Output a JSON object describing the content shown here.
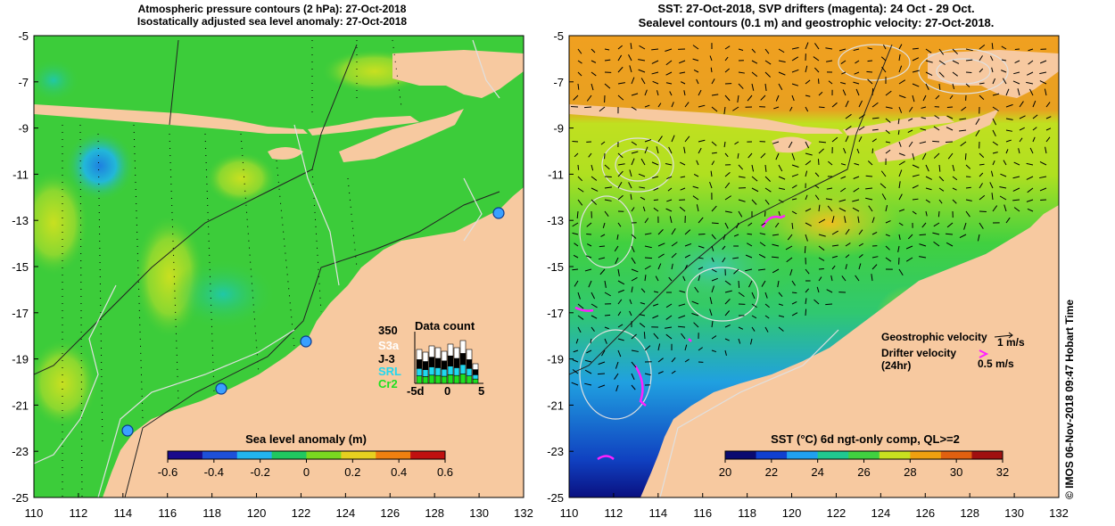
{
  "left_panel": {
    "title_line1": "Atmospheric pressure contours (2 hPa): 27-Oct-2018",
    "title_line2": "Isostatically adjusted sea level anomaly: 27-Oct-2018",
    "colorbar_title": "Sea level anomaly (m)",
    "colorbar_ticks": [
      "-0.6",
      "-0.4",
      "-0.2",
      "0",
      "0.2",
      "0.4",
      "0.6"
    ],
    "colorbar_colors": [
      "#1a0a8c",
      "#1e50d8",
      "#22b4ee",
      "#20c860",
      "#7ad820",
      "#e6d020",
      "#f08010",
      "#c01010"
    ],
    "data_count": {
      "title": "Data count",
      "max_label": "350",
      "legend": [
        {
          "label": "S3a",
          "color": "#ffffff"
        },
        {
          "label": "J-3",
          "color": "#000000"
        },
        {
          "label": "SRL",
          "color": "#20d8f0"
        },
        {
          "label": "Cr2",
          "color": "#20e020"
        }
      ],
      "x_ticks": [
        "-5d",
        "0",
        "5"
      ]
    }
  },
  "right_panel": {
    "title_line1": "SST: 27-Oct-2018, SVP drifters (magenta): 24 Oct - 29 Oct.",
    "title_line2": "Sealevel contours (0.1 m) and geostrophic velocity: 27-Oct-2018.",
    "colorbar_title": "SST (°C) 6d ngt-only comp, QL>=2",
    "colorbar_ticks": [
      "20",
      "22",
      "24",
      "26",
      "28",
      "30",
      "32"
    ],
    "colorbar_colors": [
      "#0a0a70",
      "#1040d0",
      "#20a0f0",
      "#20c890",
      "#40d040",
      "#c8e020",
      "#f0a010",
      "#e06010",
      "#a01010"
    ],
    "legend": {
      "geostrophic_label": "Geostrophic velocity",
      "geostrophic_value": "1 m/s",
      "drifter_label": "Drifter velocity",
      "drifter_sub": "(24hr)",
      "drifter_value": "0.5 m/s"
    }
  },
  "axes": {
    "x_ticks": [
      "110",
      "112",
      "114",
      "116",
      "118",
      "120",
      "122",
      "124",
      "126",
      "128",
      "130",
      "132"
    ],
    "y_ticks": [
      "-5",
      "-7",
      "-9",
      "-11",
      "-13",
      "-15",
      "-17",
      "-19",
      "-21",
      "-23",
      "-25"
    ]
  },
  "credit": "© IMOS 06-Nov-2018 09:47 Hobart Time",
  "colors": {
    "land": "#f7c9a0",
    "sea_green": "#3ccc3a",
    "sst_orange": "#f0a020",
    "drifter": "#ff20ff",
    "tide_gauge": "#3aa0ff"
  }
}
